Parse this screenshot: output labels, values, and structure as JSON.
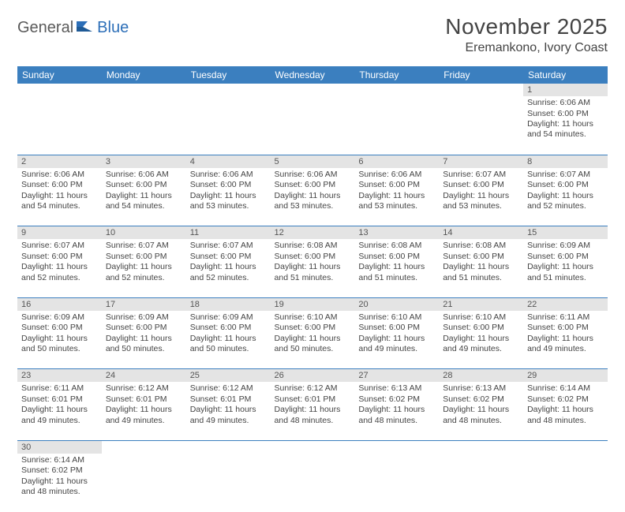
{
  "logo": {
    "text1": "General",
    "text2": "Blue"
  },
  "title": "November 2025",
  "subtitle": "Eremankono, Ivory Coast",
  "colors": {
    "header_bg": "#3b7fbf",
    "header_text": "#ffffff",
    "daynum_bg": "#e4e4e4",
    "border": "#3b7fbf",
    "text": "#444444",
    "logo_gray": "#5a5a5a",
    "logo_blue": "#2d6fb8"
  },
  "weekdays": [
    "Sunday",
    "Monday",
    "Tuesday",
    "Wednesday",
    "Thursday",
    "Friday",
    "Saturday"
  ],
  "weeks": [
    {
      "nums": [
        "",
        "",
        "",
        "",
        "",
        "",
        "1"
      ],
      "cells": [
        null,
        null,
        null,
        null,
        null,
        null,
        {
          "sunrise": "6:06 AM",
          "sunset": "6:00 PM",
          "daylight": "11 hours and 54 minutes."
        }
      ]
    },
    {
      "nums": [
        "2",
        "3",
        "4",
        "5",
        "6",
        "7",
        "8"
      ],
      "cells": [
        {
          "sunrise": "6:06 AM",
          "sunset": "6:00 PM",
          "daylight": "11 hours and 54 minutes."
        },
        {
          "sunrise": "6:06 AM",
          "sunset": "6:00 PM",
          "daylight": "11 hours and 54 minutes."
        },
        {
          "sunrise": "6:06 AM",
          "sunset": "6:00 PM",
          "daylight": "11 hours and 53 minutes."
        },
        {
          "sunrise": "6:06 AM",
          "sunset": "6:00 PM",
          "daylight": "11 hours and 53 minutes."
        },
        {
          "sunrise": "6:06 AM",
          "sunset": "6:00 PM",
          "daylight": "11 hours and 53 minutes."
        },
        {
          "sunrise": "6:07 AM",
          "sunset": "6:00 PM",
          "daylight": "11 hours and 53 minutes."
        },
        {
          "sunrise": "6:07 AM",
          "sunset": "6:00 PM",
          "daylight": "11 hours and 52 minutes."
        }
      ]
    },
    {
      "nums": [
        "9",
        "10",
        "11",
        "12",
        "13",
        "14",
        "15"
      ],
      "cells": [
        {
          "sunrise": "6:07 AM",
          "sunset": "6:00 PM",
          "daylight": "11 hours and 52 minutes."
        },
        {
          "sunrise": "6:07 AM",
          "sunset": "6:00 PM",
          "daylight": "11 hours and 52 minutes."
        },
        {
          "sunrise": "6:07 AM",
          "sunset": "6:00 PM",
          "daylight": "11 hours and 52 minutes."
        },
        {
          "sunrise": "6:08 AM",
          "sunset": "6:00 PM",
          "daylight": "11 hours and 51 minutes."
        },
        {
          "sunrise": "6:08 AM",
          "sunset": "6:00 PM",
          "daylight": "11 hours and 51 minutes."
        },
        {
          "sunrise": "6:08 AM",
          "sunset": "6:00 PM",
          "daylight": "11 hours and 51 minutes."
        },
        {
          "sunrise": "6:09 AM",
          "sunset": "6:00 PM",
          "daylight": "11 hours and 51 minutes."
        }
      ]
    },
    {
      "nums": [
        "16",
        "17",
        "18",
        "19",
        "20",
        "21",
        "22"
      ],
      "cells": [
        {
          "sunrise": "6:09 AM",
          "sunset": "6:00 PM",
          "daylight": "11 hours and 50 minutes."
        },
        {
          "sunrise": "6:09 AM",
          "sunset": "6:00 PM",
          "daylight": "11 hours and 50 minutes."
        },
        {
          "sunrise": "6:09 AM",
          "sunset": "6:00 PM",
          "daylight": "11 hours and 50 minutes."
        },
        {
          "sunrise": "6:10 AM",
          "sunset": "6:00 PM",
          "daylight": "11 hours and 50 minutes."
        },
        {
          "sunrise": "6:10 AM",
          "sunset": "6:00 PM",
          "daylight": "11 hours and 49 minutes."
        },
        {
          "sunrise": "6:10 AM",
          "sunset": "6:00 PM",
          "daylight": "11 hours and 49 minutes."
        },
        {
          "sunrise": "6:11 AM",
          "sunset": "6:00 PM",
          "daylight": "11 hours and 49 minutes."
        }
      ]
    },
    {
      "nums": [
        "23",
        "24",
        "25",
        "26",
        "27",
        "28",
        "29"
      ],
      "cells": [
        {
          "sunrise": "6:11 AM",
          "sunset": "6:01 PM",
          "daylight": "11 hours and 49 minutes."
        },
        {
          "sunrise": "6:12 AM",
          "sunset": "6:01 PM",
          "daylight": "11 hours and 49 minutes."
        },
        {
          "sunrise": "6:12 AM",
          "sunset": "6:01 PM",
          "daylight": "11 hours and 49 minutes."
        },
        {
          "sunrise": "6:12 AM",
          "sunset": "6:01 PM",
          "daylight": "11 hours and 48 minutes."
        },
        {
          "sunrise": "6:13 AM",
          "sunset": "6:02 PM",
          "daylight": "11 hours and 48 minutes."
        },
        {
          "sunrise": "6:13 AM",
          "sunset": "6:02 PM",
          "daylight": "11 hours and 48 minutes."
        },
        {
          "sunrise": "6:14 AM",
          "sunset": "6:02 PM",
          "daylight": "11 hours and 48 minutes."
        }
      ]
    },
    {
      "nums": [
        "30",
        "",
        "",
        "",
        "",
        "",
        ""
      ],
      "cells": [
        {
          "sunrise": "6:14 AM",
          "sunset": "6:02 PM",
          "daylight": "11 hours and 48 minutes."
        },
        null,
        null,
        null,
        null,
        null,
        null
      ]
    }
  ],
  "labels": {
    "sunrise": "Sunrise:",
    "sunset": "Sunset:",
    "daylight": "Daylight:"
  }
}
